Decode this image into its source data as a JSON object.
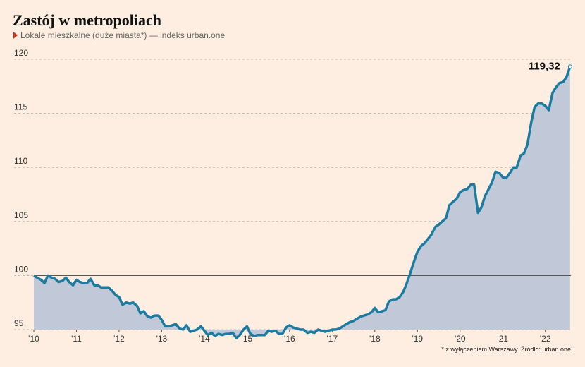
{
  "chart_data": {
    "type": "area",
    "title": "Zastój w metropoliach",
    "subtitle": "Lokale mieszkalne (duże miasta*) — indeks urban.one",
    "footnote": "* z wyłączeniem Warszawy. Źródło: urban.one",
    "x": [
      2010.0,
      2010.08,
      2010.17,
      2010.25,
      2010.33,
      2010.42,
      2010.5,
      2010.58,
      2010.67,
      2010.75,
      2010.83,
      2010.92,
      2011.0,
      2011.08,
      2011.17,
      2011.25,
      2011.33,
      2011.42,
      2011.5,
      2011.58,
      2011.67,
      2011.75,
      2011.83,
      2011.92,
      2012.0,
      2012.08,
      2012.17,
      2012.25,
      2012.33,
      2012.42,
      2012.5,
      2012.58,
      2012.67,
      2012.75,
      2012.83,
      2012.92,
      2013.0,
      2013.08,
      2013.17,
      2013.25,
      2013.33,
      2013.42,
      2013.5,
      2013.58,
      2013.67,
      2013.75,
      2013.83,
      2013.92,
      2014.0,
      2014.08,
      2014.17,
      2014.25,
      2014.33,
      2014.42,
      2014.5,
      2014.58,
      2014.67,
      2014.75,
      2014.83,
      2014.92,
      2015.0,
      2015.08,
      2015.17,
      2015.25,
      2015.33,
      2015.42,
      2015.5,
      2015.58,
      2015.67,
      2015.75,
      2015.83,
      2015.92,
      2016.0,
      2016.08,
      2016.17,
      2016.25,
      2016.33,
      2016.42,
      2016.5,
      2016.58,
      2016.67,
      2016.75,
      2016.83,
      2016.92,
      2017.0,
      2017.08,
      2017.17,
      2017.25,
      2017.33,
      2017.42,
      2017.5,
      2017.58,
      2017.67,
      2017.75,
      2017.83,
      2017.92,
      2018.0,
      2018.08,
      2018.17,
      2018.25,
      2018.33,
      2018.42,
      2018.5,
      2018.58,
      2018.67,
      2018.75,
      2018.83,
      2018.92,
      2019.0,
      2019.08,
      2019.17,
      2019.25,
      2019.33,
      2019.42,
      2019.5,
      2019.58,
      2019.67,
      2019.75,
      2019.83,
      2019.92,
      2020.0,
      2020.08,
      2020.17,
      2020.25,
      2020.33,
      2020.42,
      2020.5,
      2020.58,
      2020.67,
      2020.75,
      2020.83,
      2020.92,
      2021.0,
      2021.08,
      2021.17,
      2021.25,
      2021.33,
      2021.42,
      2021.5,
      2021.58,
      2021.67,
      2021.75,
      2021.83,
      2021.92,
      2022.0,
      2022.08,
      2022.17,
      2022.25,
      2022.33,
      2022.42,
      2022.5,
      2022.58
    ],
    "series": [
      {
        "color": "#1b7ba0",
        "fill": "#c1c9d9",
        "values": [
          100,
          99.8,
          99.6,
          99.3,
          100,
          99.8,
          99.7,
          99.4,
          99.5,
          99.8,
          99.4,
          99.1,
          99.6,
          99.4,
          99.3,
          99.3,
          99.7,
          99.1,
          99.1,
          98.9,
          98.9,
          98.9,
          98.6,
          98.2,
          98.0,
          97.3,
          97.5,
          97.4,
          97.5,
          97.2,
          96.5,
          96.7,
          96.2,
          96.1,
          96.3,
          96.3,
          95.9,
          95.3,
          95.3,
          95.4,
          95.5,
          95.1,
          95.0,
          95.4,
          94.8,
          94.9,
          95.0,
          95.3,
          94.9,
          94.5,
          94.7,
          94.4,
          94.6,
          94.5,
          94.6,
          94.6,
          94.7,
          94.2,
          94.5,
          95.0,
          95.3,
          94.6,
          94.4,
          94.5,
          94.5,
          94.5,
          94.9,
          94.8,
          94.9,
          94.6,
          94.6,
          95.2,
          95.4,
          95.2,
          95.1,
          95.0,
          95.0,
          94.7,
          94.8,
          94.7,
          95.0,
          94.9,
          94.8,
          94.9,
          95.0,
          95.0,
          95.1,
          95.3,
          95.5,
          95.7,
          95.8,
          96.0,
          96.2,
          96.3,
          96.4,
          96.6,
          97.0,
          96.6,
          96.7,
          96.8,
          97.6,
          97.8,
          97.8,
          98.0,
          98.5,
          99.3,
          100.2,
          101.3,
          102.2,
          102.7,
          103.0,
          103.4,
          103.8,
          104.5,
          104.7,
          105.0,
          105.3,
          106.5,
          106.8,
          107.1,
          107.7,
          107.9,
          108.0,
          108.4,
          108.4,
          105.8,
          106.3,
          107.3,
          108.0,
          108.6,
          109.6,
          109.5,
          109.1,
          109.0,
          109.5,
          110.0,
          110.0,
          111.1,
          111.3,
          112.1,
          114.2,
          115.6,
          115.9,
          115.9,
          115.7,
          115.3,
          116.9,
          117.4,
          117.8,
          117.9,
          118.4,
          119.32
        ]
      }
    ],
    "last_value_label": "119,32",
    "reference_line": 100,
    "xlim": [
      2010,
      2022.6
    ],
    "xticks": [
      {
        "value": 2010,
        "label": "'10"
      },
      {
        "value": 2011,
        "label": "'11"
      },
      {
        "value": 2012,
        "label": "'12"
      },
      {
        "value": 2013,
        "label": "'13"
      },
      {
        "value": 2014,
        "label": "'14"
      },
      {
        "value": 2015,
        "label": "'15"
      },
      {
        "value": 2016,
        "label": "'16"
      },
      {
        "value": 2017,
        "label": "'17"
      },
      {
        "value": 2018,
        "label": "'18"
      },
      {
        "value": 2019,
        "label": "'19"
      },
      {
        "value": 2020,
        "label": "'20"
      },
      {
        "value": 2021,
        "label": "'21"
      },
      {
        "value": 2022,
        "label": "'22"
      }
    ],
    "ylim": [
      95,
      120
    ],
    "yticks": [
      95,
      100,
      105,
      110,
      115,
      120
    ],
    "grid": true
  }
}
